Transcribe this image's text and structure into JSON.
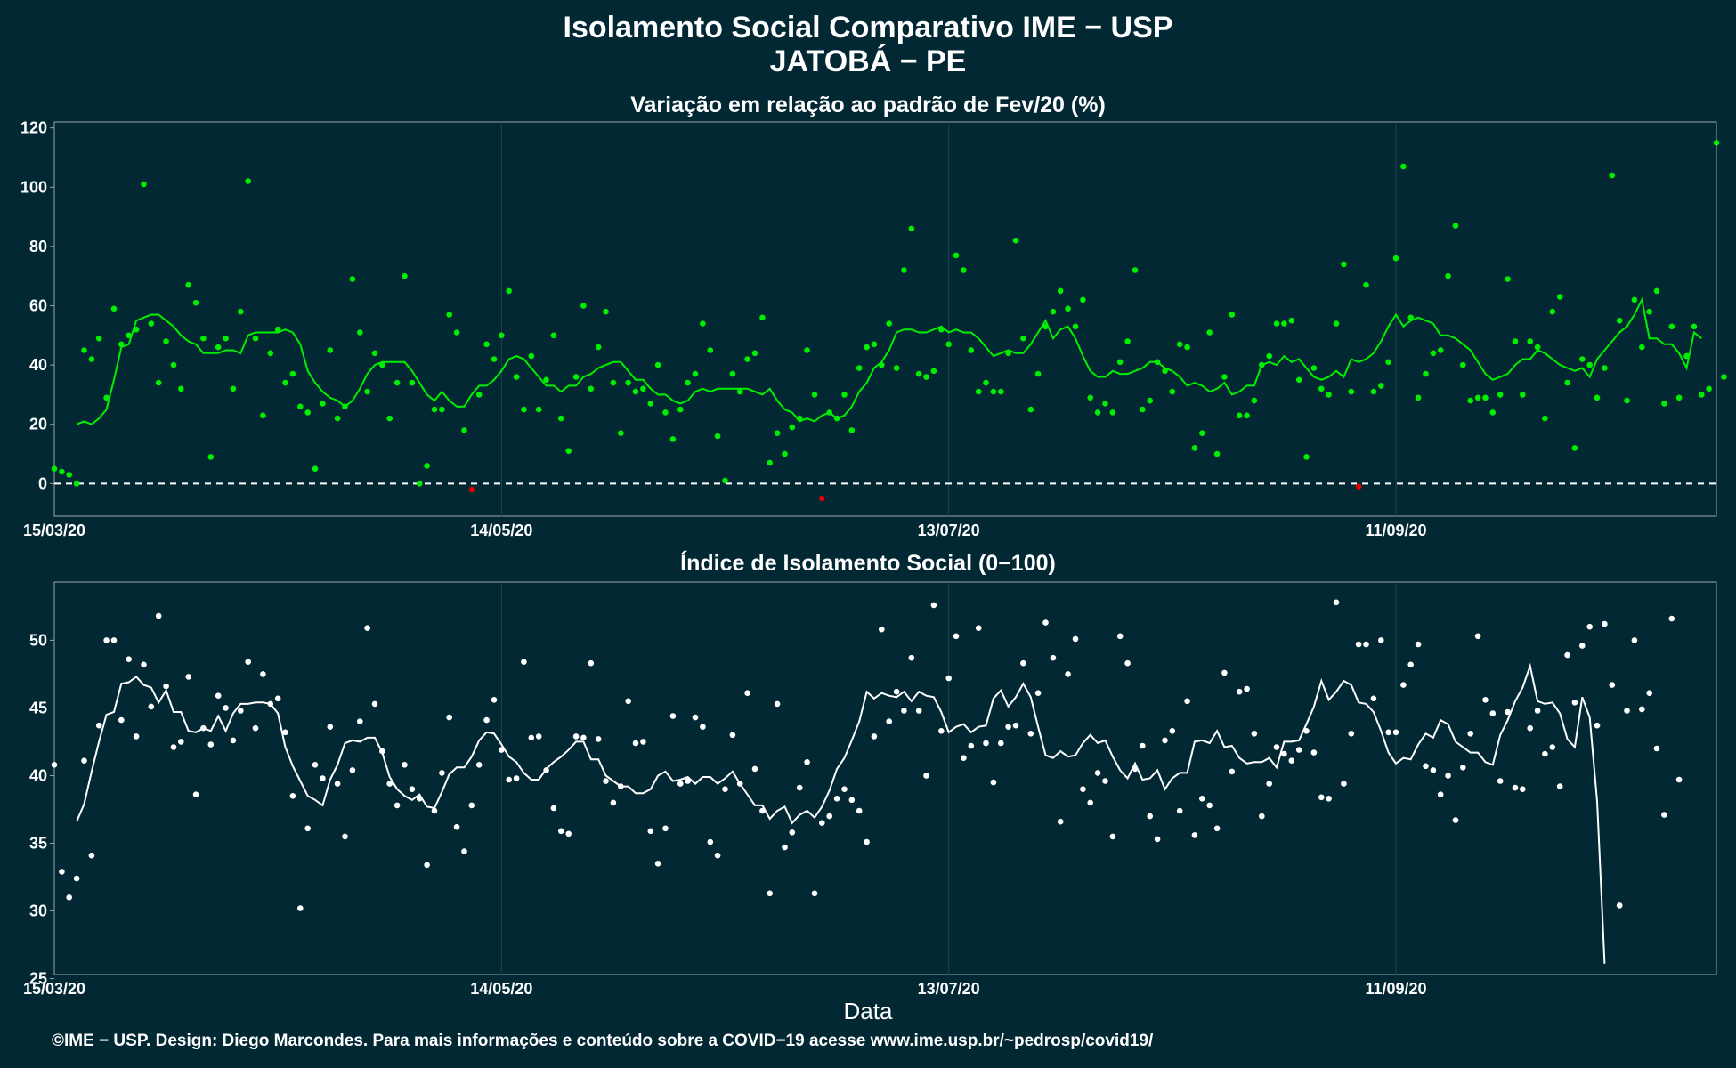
{
  "page": {
    "title_line1": "Isolamento Social Comparativo IME − USP",
    "title_line2": "JATOBÁ − PE",
    "xlabel": "Data",
    "caption": "©IME − USP. Design: Diego Marcondes. Para mais informações e conteúdo sobre a COVID−19 acesse www.ime.usp.br/~pedrosp/covid19/"
  },
  "colors": {
    "background": "#022834",
    "panel_border": "#9aa5a8",
    "grid": "#1e4551",
    "variation_points": "#00ee00",
    "variation_negative_points": "#e00000",
    "variation_line": "#00ee00",
    "index_points": "#ffffff",
    "index_line": "#ffffff",
    "zero_line": "#ffffff"
  },
  "chart_data": [
    {
      "type": "scatter",
      "title": "Variação em relação ao padrão de Fev/20 (%)",
      "xlabel": "",
      "ylabel": "",
      "x_tick_labels": [
        "15/03/20",
        "14/05/20",
        "13/07/20",
        "11/09/20"
      ],
      "x_tick_days": [
        0,
        60,
        120,
        180
      ],
      "ylim": [
        -11,
        122
      ],
      "y_ticks": [
        0,
        20,
        40,
        60,
        80,
        100,
        120
      ],
      "reference_line": {
        "y": 0,
        "style": "dashed"
      },
      "grid": true,
      "x_unit": "days since 15/03/20",
      "series": [
        {
          "type": "scatter",
          "values": [
            5,
            4,
            3,
            0,
            45,
            42,
            49,
            29,
            59,
            47,
            50,
            52,
            101,
            54,
            34,
            48,
            40,
            32,
            67,
            61,
            49,
            9,
            46,
            49,
            32,
            58,
            102,
            49,
            23,
            44,
            52,
            34,
            37,
            26,
            24,
            5,
            27,
            45,
            22,
            26,
            69,
            51,
            31,
            44,
            40,
            22,
            34,
            70,
            34,
            0,
            6,
            25,
            25,
            57,
            51,
            18,
            -2,
            30,
            47,
            42,
            50,
            65,
            36,
            25,
            43,
            25,
            35,
            50,
            22,
            11,
            36,
            60,
            32,
            46,
            58,
            34,
            17,
            34,
            31,
            32,
            27,
            40,
            24,
            15,
            25,
            34,
            37,
            54,
            45,
            16,
            1,
            37,
            31,
            42,
            44,
            56,
            7,
            17,
            10,
            19,
            22,
            45,
            30,
            -5,
            24,
            22,
            30,
            18,
            39,
            46,
            47,
            40,
            54,
            39,
            72,
            86,
            37,
            36,
            38,
            52,
            47,
            77,
            72,
            45,
            31,
            34,
            31,
            31,
            44,
            82,
            49,
            25,
            37,
            53,
            58,
            65,
            59,
            53,
            62,
            29,
            24,
            27,
            24,
            41,
            48,
            72,
            25,
            28,
            41,
            38,
            31,
            47,
            46,
            12,
            17,
            51,
            10,
            36,
            57,
            23,
            23,
            28,
            40,
            43,
            54,
            54,
            55,
            35,
            9,
            39,
            32,
            30,
            54,
            74,
            31,
            -1,
            67,
            31,
            33,
            41,
            76,
            107,
            56,
            29,
            37,
            44,
            45,
            70,
            87,
            40,
            28,
            29,
            29,
            24,
            30,
            69,
            48,
            30,
            48,
            46,
            22,
            58,
            63,
            34,
            12,
            42,
            40,
            29,
            39,
            104,
            55,
            28,
            62,
            46,
            58,
            65,
            27,
            53,
            29,
            43,
            53,
            30,
            32,
            115,
            36
          ]
        },
        {
          "type": "line",
          "name": "",
          "values": [
            null,
            null,
            null,
            20,
            21,
            20,
            22,
            25,
            35,
            46,
            47,
            55,
            56,
            57,
            57,
            55,
            53,
            50,
            48,
            47,
            44,
            44,
            44,
            45,
            45,
            44,
            50,
            51,
            51,
            51,
            51,
            52,
            51,
            47,
            38,
            34,
            31,
            29,
            28,
            26,
            28,
            32,
            37,
            40,
            41,
            41,
            41,
            41,
            38,
            34,
            30,
            28,
            31,
            28,
            26,
            26,
            30,
            33,
            33,
            35,
            38,
            42,
            43,
            42,
            39,
            36,
            33,
            33,
            31,
            33,
            33,
            36,
            37,
            39,
            40,
            41,
            41,
            38,
            35,
            35,
            32,
            30,
            30,
            28,
            27,
            28,
            31,
            32,
            31,
            32,
            32,
            32,
            32,
            32,
            31,
            30,
            32,
            28,
            25,
            24,
            21,
            22,
            21,
            23,
            24,
            22,
            23,
            26,
            31,
            34,
            39,
            41,
            45,
            51,
            52,
            52,
            51,
            51,
            52,
            53,
            51,
            52,
            51,
            51,
            49,
            46,
            43,
            44,
            45,
            44,
            44,
            47,
            51,
            55,
            49,
            52,
            53,
            49,
            43,
            38,
            36,
            36,
            38,
            37,
            37,
            38,
            39,
            41,
            41,
            39,
            38,
            36,
            33,
            34,
            33,
            31,
            32,
            34,
            30,
            31,
            33,
            33,
            40,
            41,
            40,
            43,
            41,
            42,
            39,
            36,
            35,
            36,
            38,
            36,
            42,
            41,
            42,
            44,
            48,
            53,
            57,
            53,
            55,
            56,
            55,
            54,
            50,
            50,
            49,
            47,
            45,
            41,
            37,
            35,
            36,
            37,
            40,
            42,
            42,
            45,
            44,
            42,
            40,
            39,
            38,
            39,
            36,
            42,
            45,
            48,
            51,
            53,
            57,
            62,
            49,
            49,
            47,
            47,
            44,
            39,
            51,
            49
          ]
        }
      ]
    },
    {
      "type": "scatter",
      "title": "Índice de Isolamento Social (0−100)",
      "xlabel": "Data",
      "ylabel": "",
      "x_tick_labels": [
        "15/03/20",
        "14/05/20",
        "13/07/20",
        "11/09/20"
      ],
      "x_tick_days": [
        0,
        60,
        120,
        180
      ],
      "ylim": [
        25.3,
        54.3
      ],
      "y_ticks": [
        25,
        30,
        35,
        40,
        45,
        50
      ],
      "grid": true,
      "x_unit": "days since 15/03/20",
      "series": [
        {
          "type": "scatter",
          "values": [
            40.8,
            32.9,
            31.0,
            32.4,
            41.1,
            34.1,
            43.7,
            50.0,
            50.0,
            44.1,
            48.6,
            42.9,
            48.2,
            45.1,
            51.8,
            46.6,
            42.1,
            42.5,
            47.3,
            38.6,
            43.5,
            42.3,
            45.9,
            45.0,
            42.6,
            44.8,
            48.4,
            43.5,
            47.5,
            45.3,
            45.7,
            43.2,
            38.5,
            30.2,
            36.1,
            40.8,
            39.8,
            43.6,
            39.4,
            35.5,
            40.4,
            44.0,
            50.9,
            45.3,
            41.8,
            39.4,
            37.8,
            40.8,
            39.0,
            38.3,
            33.4,
            37.4,
            40.2,
            44.3,
            36.2,
            34.4,
            37.8,
            40.8,
            44.1,
            45.6,
            41.9,
            39.7,
            39.8,
            48.4,
            42.8,
            42.9,
            40.4,
            37.6,
            35.9,
            35.7,
            42.9,
            42.8,
            48.3,
            42.7,
            39.6,
            38.0,
            39.2,
            45.5,
            42.4,
            42.5,
            35.9,
            33.5,
            36.1,
            44.4,
            39.4,
            39.6,
            44.3,
            43.6,
            35.1,
            34.1,
            39.0,
            43.0,
            39.4,
            46.1,
            40.5,
            37.4,
            31.3,
            45.3,
            34.7,
            35.8,
            39.1,
            41.0,
            31.3,
            36.5,
            37.0,
            38.3,
            39.0,
            38.2,
            37.4,
            35.1,
            42.9,
            50.8,
            44.0,
            46.2,
            44.8,
            48.7,
            44.8,
            40.0,
            52.6,
            43.3,
            47.2,
            50.3,
            41.3,
            42.2,
            50.9,
            42.4,
            39.5,
            42.4,
            43.6,
            43.7,
            48.3,
            43.1,
            46.1,
            51.3,
            48.7,
            36.6,
            47.5,
            50.1,
            39.0,
            38.0,
            40.2,
            39.6,
            35.5,
            50.3,
            48.3,
            40.5,
            42.2,
            37.0,
            35.3,
            42.6,
            43.3,
            37.4,
            45.5,
            35.6,
            38.3,
            37.8,
            36.1,
            47.6,
            40.3,
            46.2,
            46.4,
            43.1,
            37.0,
            39.4,
            42.1,
            41.6,
            41.1,
            41.9,
            43.3,
            41.7,
            38.4,
            38.3,
            52.8,
            39.4,
            43.1,
            49.7,
            49.7,
            45.7,
            50.0,
            43.2,
            43.2,
            46.7,
            48.2,
            49.7,
            40.7,
            40.4,
            38.6,
            40.0,
            36.7,
            40.6,
            43.1,
            50.3,
            45.6,
            44.6,
            39.6,
            44.7,
            39.1,
            39.0,
            43.5,
            44.8,
            41.6,
            42.1,
            39.2,
            48.9,
            45.4,
            49.6,
            51.0,
            43.7,
            51.2,
            46.7,
            30.4,
            44.8,
            50.0,
            44.9,
            46.1,
            42.0,
            37.1,
            51.6,
            39.7
          ]
        },
        {
          "type": "line",
          "name": "",
          "values": [
            null,
            null,
            null,
            36.6,
            37.9,
            40.3,
            42.5,
            44.5,
            44.7,
            46.8,
            46.9,
            47.3,
            46.7,
            46.5,
            45.4,
            46.3,
            44.7,
            44.7,
            43.3,
            43.2,
            43.5,
            43.3,
            44.4,
            43.3,
            44.6,
            45.3,
            45.3,
            45.4,
            45.4,
            45.3,
            44.6,
            42.1,
            40.7,
            39.6,
            38.5,
            38.2,
            37.8,
            39.7,
            40.8,
            42.4,
            42.6,
            42.5,
            42.8,
            42.8,
            41.7,
            39.9,
            39.0,
            38.5,
            38.2,
            38.6,
            37.7,
            37.6,
            38.8,
            40.1,
            40.6,
            40.6,
            41.4,
            42.6,
            43.2,
            43.1,
            42.3,
            41.4,
            41.0,
            40.2,
            39.7,
            39.7,
            40.5,
            41.0,
            41.4,
            41.9,
            42.5,
            42.5,
            41.2,
            41.2,
            40.0,
            39.6,
            39.2,
            39.2,
            38.7,
            38.7,
            39.0,
            40.0,
            40.3,
            39.6,
            39.7,
            39.9,
            39.4,
            39.9,
            39.9,
            39.4,
            39.8,
            40.3,
            39.4,
            38.6,
            37.8,
            37.8,
            36.8,
            37.4,
            37.7,
            36.5,
            37.1,
            37.4,
            36.9,
            37.7,
            38.9,
            40.5,
            41.3,
            42.6,
            44.0,
            46.2,
            45.7,
            46.1,
            45.9,
            45.8,
            46.2,
            45.5,
            46.2,
            45.9,
            45.8,
            44.7,
            43.2,
            43.6,
            43.8,
            43.2,
            43.6,
            43.7,
            45.7,
            46.3,
            45.1,
            45.8,
            46.8,
            45.8,
            43.6,
            41.5,
            41.3,
            41.8,
            41.4,
            41.5,
            42.4,
            43.0,
            42.4,
            42.6,
            41.4,
            40.4,
            39.8,
            40.9,
            39.7,
            39.8,
            40.4,
            39.0,
            39.8,
            40.2,
            40.2,
            42.5,
            42.6,
            42.4,
            43.3,
            42.1,
            42.2,
            41.3,
            40.9,
            41.0,
            41.0,
            41.3,
            40.6,
            42.5,
            42.5,
            42.6,
            43.8,
            45.1,
            47.0,
            45.6,
            46.2,
            47.0,
            46.7,
            45.4,
            45.3,
            44.7,
            43.3,
            41.7,
            40.9,
            41.3,
            41.2,
            42.3,
            43.1,
            42.8,
            44.1,
            43.8,
            42.5,
            42.1,
            41.7,
            41.7,
            41.0,
            40.8,
            43.0,
            44.1,
            45.5,
            46.5,
            48.1,
            45.5,
            45.3,
            45.4,
            44.6,
            42.7,
            42.1,
            45.8,
            44.3,
            38.1,
            26.1
          ]
        }
      ]
    }
  ]
}
